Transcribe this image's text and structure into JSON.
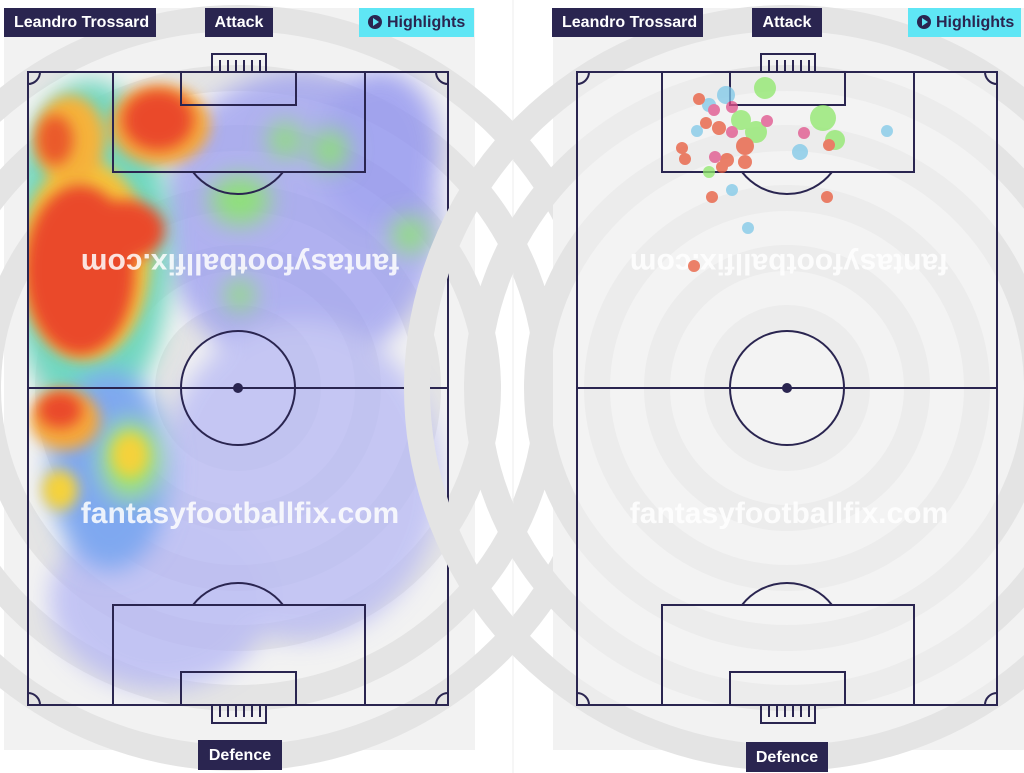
{
  "panels": [
    {
      "header": {
        "player": "Leandro Trossard",
        "top_label": "Attack",
        "button": "Highlights"
      },
      "footer": "Defence",
      "watermark": "fantasyfootballfix.com"
    },
    {
      "header": {
        "player": "Leandro Trossard",
        "top_label": "Attack",
        "button": "Highlights"
      },
      "footer": "Defence",
      "watermark": "fantasyfootballfix.com"
    }
  ]
}
